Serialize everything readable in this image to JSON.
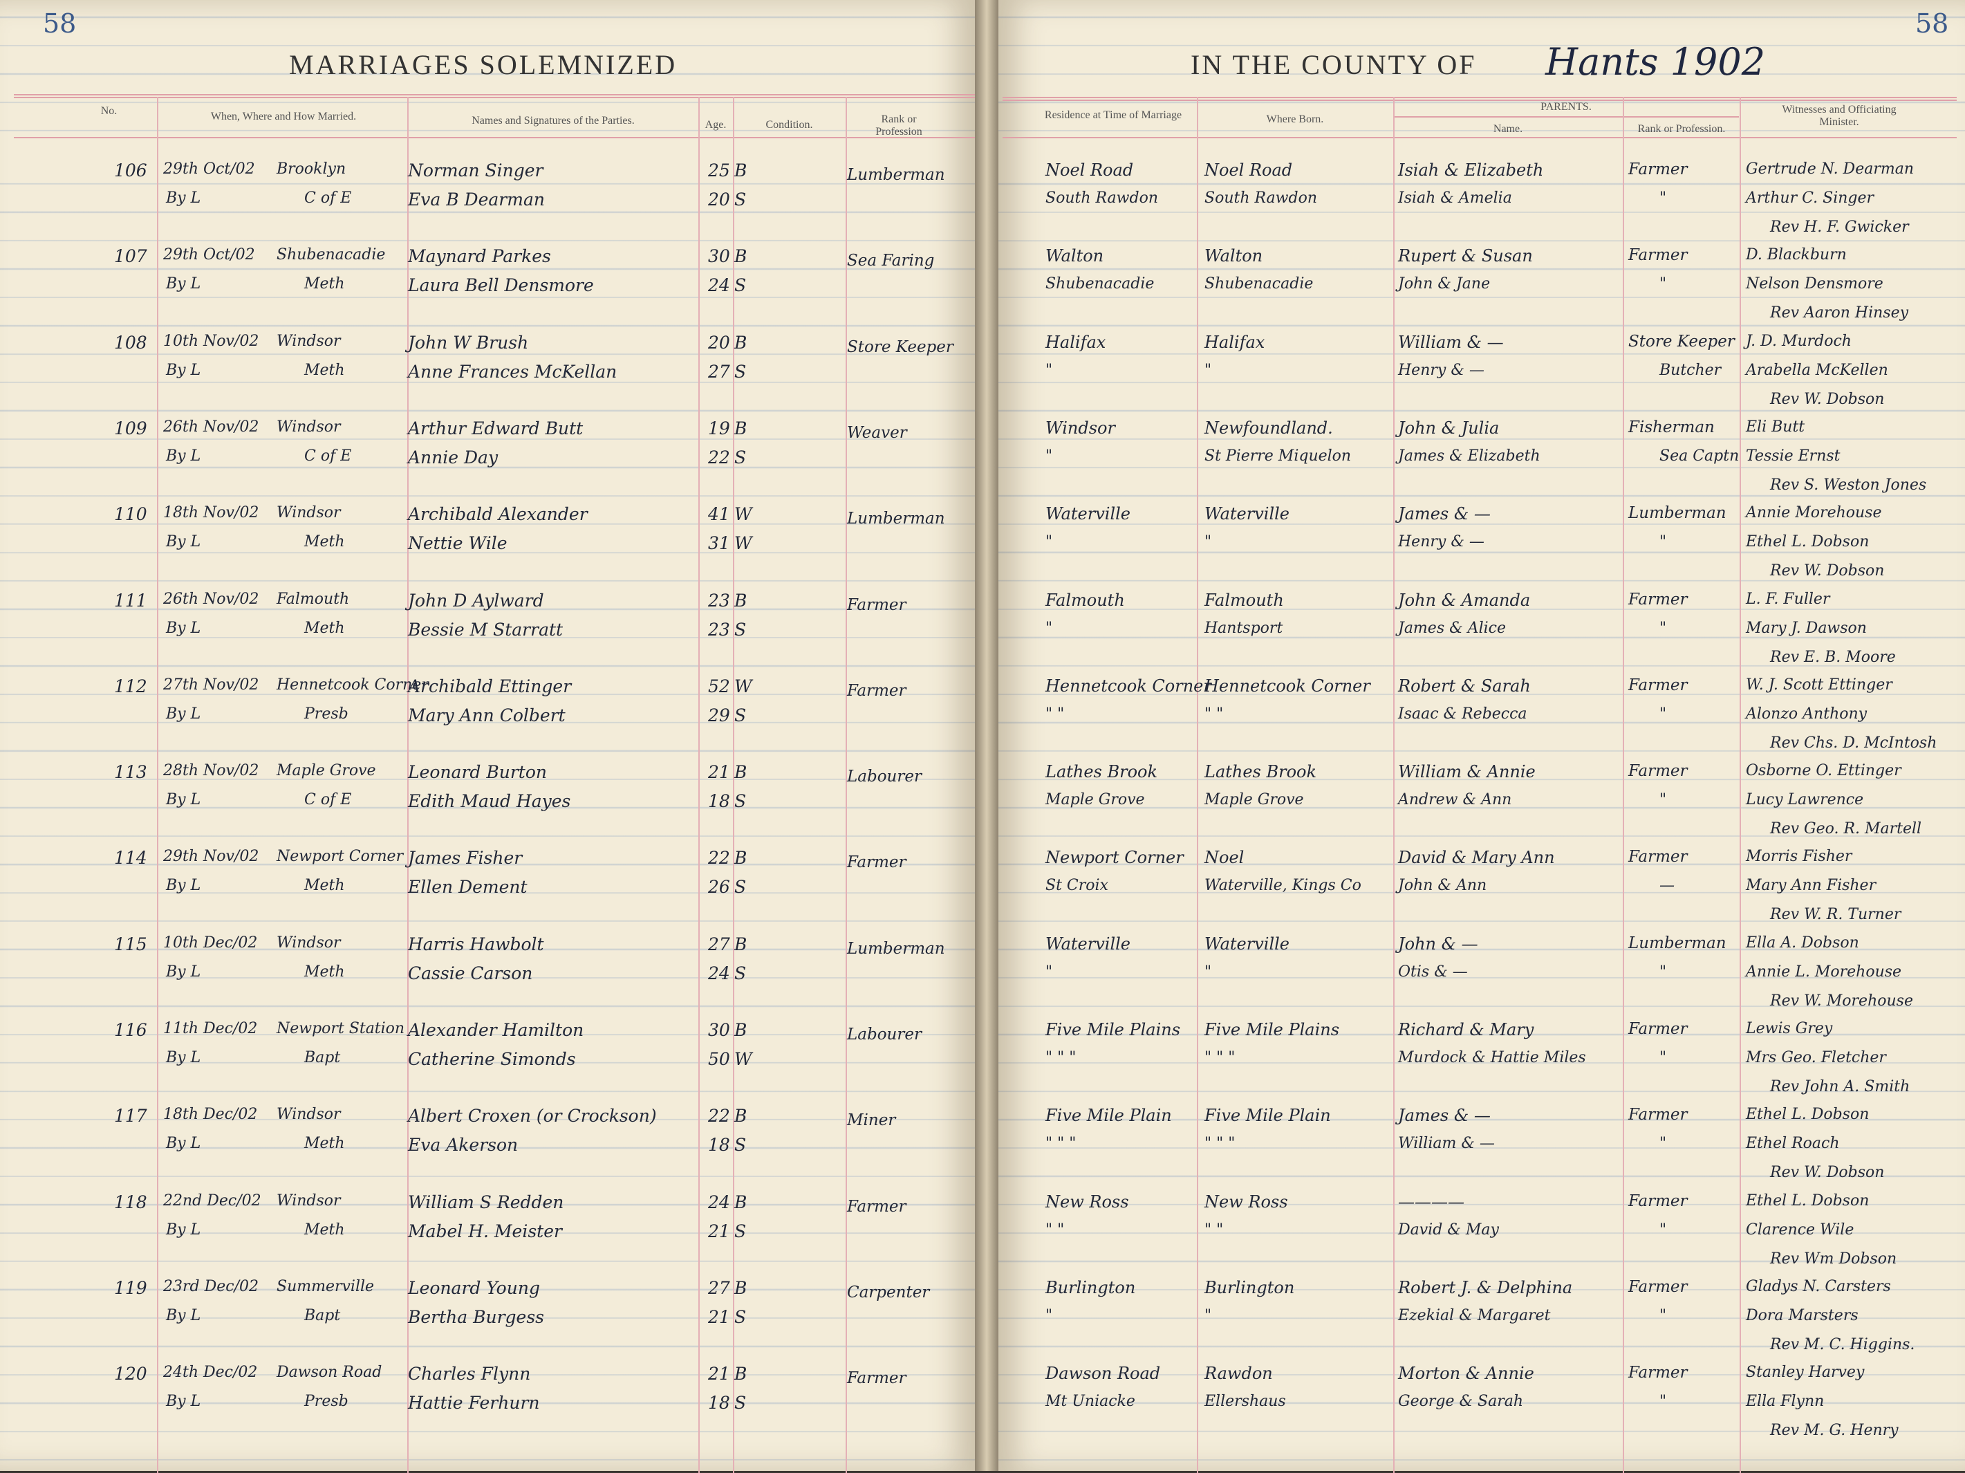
{
  "left_page": {
    "page_number": "58",
    "title": "MARRIAGES SOLEMNIZED"
  },
  "right_page": {
    "page_number": "58",
    "title": "IN THE COUNTY OF",
    "county_handwritten": "Hants 1902"
  },
  "headers": {
    "no": "No.",
    "when": "When, Where and How Married.",
    "names": "Names and Signatures of the Parties.",
    "age": "Age.",
    "condition": "Condition.",
    "rank": "Rank or Profession",
    "residence": "Residence at Time of Marriage",
    "born": "Where Born.",
    "parents": "PARENTS.",
    "parent_name": "Name.",
    "parent_rank": "Rank or Profession.",
    "witnesses": "Witnesses and Officiating Minister."
  },
  "entries": [
    {
      "no": "106",
      "date": "29th Oct/02",
      "place": "Brooklyn",
      "how": "By L",
      "church": "C of E",
      "groom": "Norman Singer",
      "groom_age": "25",
      "groom_cond": "B",
      "rank": "Lumberman",
      "bride": "Eva B Dearman",
      "bride_age": "20",
      "bride_cond": "S",
      "res": [
        "Noel Road",
        "South Rawdon"
      ],
      "born": [
        "Noel Road",
        "South Rawdon"
      ],
      "parents": [
        "Isiah & Elizabeth",
        "Isiah & Amelia"
      ],
      "parents_rank": [
        "Farmer",
        "\""
      ],
      "witnesses": [
        "Gertrude N. Dearman",
        "Arthur C. Singer",
        "Rev H. F. Gwicker"
      ]
    },
    {
      "no": "107",
      "date": "29th Oct/02",
      "place": "Shubenacadie",
      "how": "By L",
      "church": "Meth",
      "groom": "Maynard Parkes",
      "groom_age": "30",
      "groom_cond": "B",
      "rank": "Sea Faring",
      "bride": "Laura Bell Densmore",
      "bride_age": "24",
      "bride_cond": "S",
      "res": [
        "Walton",
        "Shubenacadie"
      ],
      "born": [
        "Walton",
        "Shubenacadie"
      ],
      "parents": [
        "Rupert & Susan",
        "John & Jane"
      ],
      "parents_rank": [
        "Farmer",
        "\""
      ],
      "witnesses": [
        "D. Blackburn",
        "Nelson Densmore",
        "Rev Aaron Hinsey"
      ]
    },
    {
      "no": "108",
      "date": "10th Nov/02",
      "place": "Windsor",
      "how": "By L",
      "church": "Meth",
      "groom": "John W Brush",
      "groom_age": "20",
      "groom_cond": "B",
      "rank": "Store Keeper",
      "bride": "Anne Frances McKellan",
      "bride_age": "27",
      "bride_cond": "S",
      "res": [
        "Halifax",
        "\""
      ],
      "born": [
        "Halifax",
        "\""
      ],
      "parents": [
        "William & —",
        "Henry & —"
      ],
      "parents_rank": [
        "Store Keeper",
        "Butcher"
      ],
      "witnesses": [
        "J. D. Murdoch",
        "Arabella McKellen",
        "Rev W. Dobson"
      ]
    },
    {
      "no": "109",
      "date": "26th Nov/02",
      "place": "Windsor",
      "how": "By L",
      "church": "C of E",
      "groom": "Arthur Edward Butt",
      "groom_age": "19",
      "groom_cond": "B",
      "rank": "Weaver",
      "bride": "Annie Day",
      "bride_age": "22",
      "bride_cond": "S",
      "res": [
        "Windsor",
        "\""
      ],
      "born": [
        "Newfoundland.",
        "St Pierre Miquelon"
      ],
      "parents": [
        "John & Julia",
        "James & Elizabeth"
      ],
      "parents_rank": [
        "Fisherman",
        "Sea Captn"
      ],
      "witnesses": [
        "Eli Butt",
        "Tessie Ernst",
        "Rev S. Weston Jones"
      ]
    },
    {
      "no": "110",
      "date": "18th Nov/02",
      "place": "Windsor",
      "how": "By L",
      "church": "Meth",
      "groom": "Archibald Alexander",
      "groom_age": "41",
      "groom_cond": "W",
      "rank": "Lumberman",
      "bride": "Nettie Wile",
      "bride_age": "31",
      "bride_cond": "W",
      "res": [
        "Waterville",
        "\""
      ],
      "born": [
        "Waterville",
        "\""
      ],
      "parents": [
        "James & —",
        "Henry & —"
      ],
      "parents_rank": [
        "Lumberman",
        "\""
      ],
      "witnesses": [
        "Annie Morehouse",
        "Ethel L. Dobson",
        "Rev W. Dobson"
      ]
    },
    {
      "no": "111",
      "date": "26th Nov/02",
      "place": "Falmouth",
      "how": "By L",
      "church": "Meth",
      "groom": "John D Aylward",
      "groom_age": "23",
      "groom_cond": "B",
      "rank": "Farmer",
      "bride": "Bessie M Starratt",
      "bride_age": "23",
      "bride_cond": "S",
      "res": [
        "Falmouth",
        "\""
      ],
      "born": [
        "Falmouth",
        "Hantsport"
      ],
      "parents": [
        "John & Amanda",
        "James & Alice"
      ],
      "parents_rank": [
        "Farmer",
        "\""
      ],
      "witnesses": [
        "L. F. Fuller",
        "Mary J. Dawson",
        "Rev E. B. Moore"
      ]
    },
    {
      "no": "112",
      "date": "27th Nov/02",
      "place": "Hennetcook Corner",
      "how": "By L",
      "church": "Presb",
      "groom": "Archibald Ettinger",
      "groom_age": "52",
      "groom_cond": "W",
      "rank": "Farmer",
      "bride": "Mary Ann Colbert",
      "bride_age": "29",
      "bride_cond": "S",
      "res": [
        "Hennetcook Corner",
        "\"   \""
      ],
      "born": [
        "Hennetcook Corner",
        "\"   \""
      ],
      "parents": [
        "Robert & Sarah",
        "Isaac & Rebecca"
      ],
      "parents_rank": [
        "Farmer",
        "\""
      ],
      "witnesses": [
        "W. J. Scott Ettinger",
        "Alonzo Anthony",
        "Rev Chs. D. McIntosh"
      ]
    },
    {
      "no": "113",
      "date": "28th Nov/02",
      "place": "Maple Grove",
      "how": "By L",
      "church": "C of E",
      "groom": "Leonard Burton",
      "groom_age": "21",
      "groom_cond": "B",
      "rank": "Labourer",
      "bride": "Edith Maud Hayes",
      "bride_age": "18",
      "bride_cond": "S",
      "res": [
        "Lathes Brook",
        "Maple Grove"
      ],
      "born": [
        "Lathes Brook",
        "Maple Grove"
      ],
      "parents": [
        "William & Annie",
        "Andrew & Ann"
      ],
      "parents_rank": [
        "Farmer",
        "\""
      ],
      "witnesses": [
        "Osborne O. Ettinger",
        "Lucy Lawrence",
        "Rev Geo. R. Martell"
      ]
    },
    {
      "no": "114",
      "date": "29th Nov/02",
      "place": "Newport Corner",
      "how": "By L",
      "church": "Meth",
      "groom": "James Fisher",
      "groom_age": "22",
      "groom_cond": "B",
      "rank": "Farmer",
      "bride": "Ellen Dement",
      "bride_age": "26",
      "bride_cond": "S",
      "res": [
        "Newport Corner",
        "St Croix"
      ],
      "born": [
        "Noel",
        "Waterville, Kings Co"
      ],
      "parents": [
        "David & Mary Ann",
        "John & Ann"
      ],
      "parents_rank": [
        "Farmer",
        "—"
      ],
      "witnesses": [
        "Morris Fisher",
        "Mary Ann Fisher",
        "Rev W. R. Turner"
      ]
    },
    {
      "no": "115",
      "date": "10th Dec/02",
      "place": "Windsor",
      "how": "By L",
      "church": "Meth",
      "groom": "Harris Hawbolt",
      "groom_age": "27",
      "groom_cond": "B",
      "rank": "Lumberman",
      "bride": "Cassie Carson",
      "bride_age": "24",
      "bride_cond": "S",
      "res": [
        "Waterville",
        "\""
      ],
      "born": [
        "Waterville",
        "\""
      ],
      "parents": [
        "John & —",
        "Otis & —"
      ],
      "parents_rank": [
        "Lumberman",
        "\""
      ],
      "witnesses": [
        "Ella A. Dobson",
        "Annie L. Morehouse",
        "Rev W. Morehouse"
      ]
    },
    {
      "no": "116",
      "date": "11th Dec/02",
      "place": "Newport Station",
      "how": "By L",
      "church": "Bapt",
      "groom": "Alexander Hamilton",
      "groom_age": "30",
      "groom_cond": "B",
      "rank": "Labourer",
      "bride": "Catherine Simonds",
      "bride_age": "50",
      "bride_cond": "W",
      "res": [
        "Five Mile Plains",
        "\"   \"   \""
      ],
      "born": [
        "Five Mile Plains",
        "\"   \"   \""
      ],
      "parents": [
        "Richard & Mary",
        "Murdock & Hattie Miles"
      ],
      "parents_rank": [
        "Farmer",
        "\""
      ],
      "witnesses": [
        "Lewis Grey",
        "Mrs Geo. Fletcher",
        "Rev John A. Smith"
      ]
    },
    {
      "no": "117",
      "date": "18th Dec/02",
      "place": "Windsor",
      "how": "By L",
      "church": "Meth",
      "groom": "Albert Croxen (or Crockson)",
      "groom_age": "22",
      "groom_cond": "B",
      "rank": "Miner",
      "bride": "Eva Akerson",
      "bride_age": "18",
      "bride_cond": "S",
      "res": [
        "Five Mile Plain",
        "\"   \"   \""
      ],
      "born": [
        "Five Mile Plain",
        "\"   \"   \""
      ],
      "parents": [
        "James & —",
        "William & —"
      ],
      "parents_rank": [
        "Farmer",
        "\""
      ],
      "witnesses": [
        "Ethel L. Dobson",
        "Ethel Roach",
        "Rev W. Dobson"
      ]
    },
    {
      "no": "118",
      "date": "22nd Dec/02",
      "place": "Windsor",
      "how": "By L",
      "church": "Meth",
      "groom": "William S Redden",
      "groom_age": "24",
      "groom_cond": "B",
      "rank": "Farmer",
      "bride": "Mabel H. Meister",
      "bride_age": "21",
      "bride_cond": "S",
      "res": [
        "New Ross",
        "\"   \""
      ],
      "born": [
        "New Ross",
        "\"   \""
      ],
      "parents": [
        "————",
        "David & May"
      ],
      "parents_rank": [
        "Farmer",
        "\""
      ],
      "witnesses": [
        "Ethel L. Dobson",
        "Clarence Wile",
        "Rev Wm Dobson"
      ]
    },
    {
      "no": "119",
      "date": "23rd Dec/02",
      "place": "Summerville",
      "how": "By L",
      "church": "Bapt",
      "groom": "Leonard Young",
      "groom_age": "27",
      "groom_cond": "B",
      "rank": "Carpenter",
      "bride": "Bertha Burgess",
      "bride_age": "21",
      "bride_cond": "S",
      "res": [
        "Burlington",
        "\""
      ],
      "born": [
        "Burlington",
        "\""
      ],
      "parents": [
        "Robert J. & Delphina",
        "Ezekial & Margaret"
      ],
      "parents_rank": [
        "Farmer",
        "\""
      ],
      "witnesses": [
        "Gladys N. Carsters",
        "Dora Marsters",
        "Rev M. C. Higgins."
      ]
    },
    {
      "no": "120",
      "date": "24th Dec/02",
      "place": "Dawson Road",
      "how": "By L",
      "church": "Presb",
      "groom": "Charles Flynn",
      "groom_age": "21",
      "groom_cond": "B",
      "rank": "Farmer",
      "bride": "Hattie Ferhurn",
      "bride_age": "18",
      "bride_cond": "S",
      "res": [
        "Dawson Road",
        "Mt Uniacke"
      ],
      "born": [
        "Rawdon",
        "Ellershaus"
      ],
      "parents": [
        "Morton & Annie",
        "George & Sarah"
      ],
      "parents_rank": [
        "Farmer",
        "\""
      ],
      "witnesses": [
        "Stanley Harvey",
        "Ella Flynn",
        "Rev M. G. Henry"
      ]
    }
  ]
}
